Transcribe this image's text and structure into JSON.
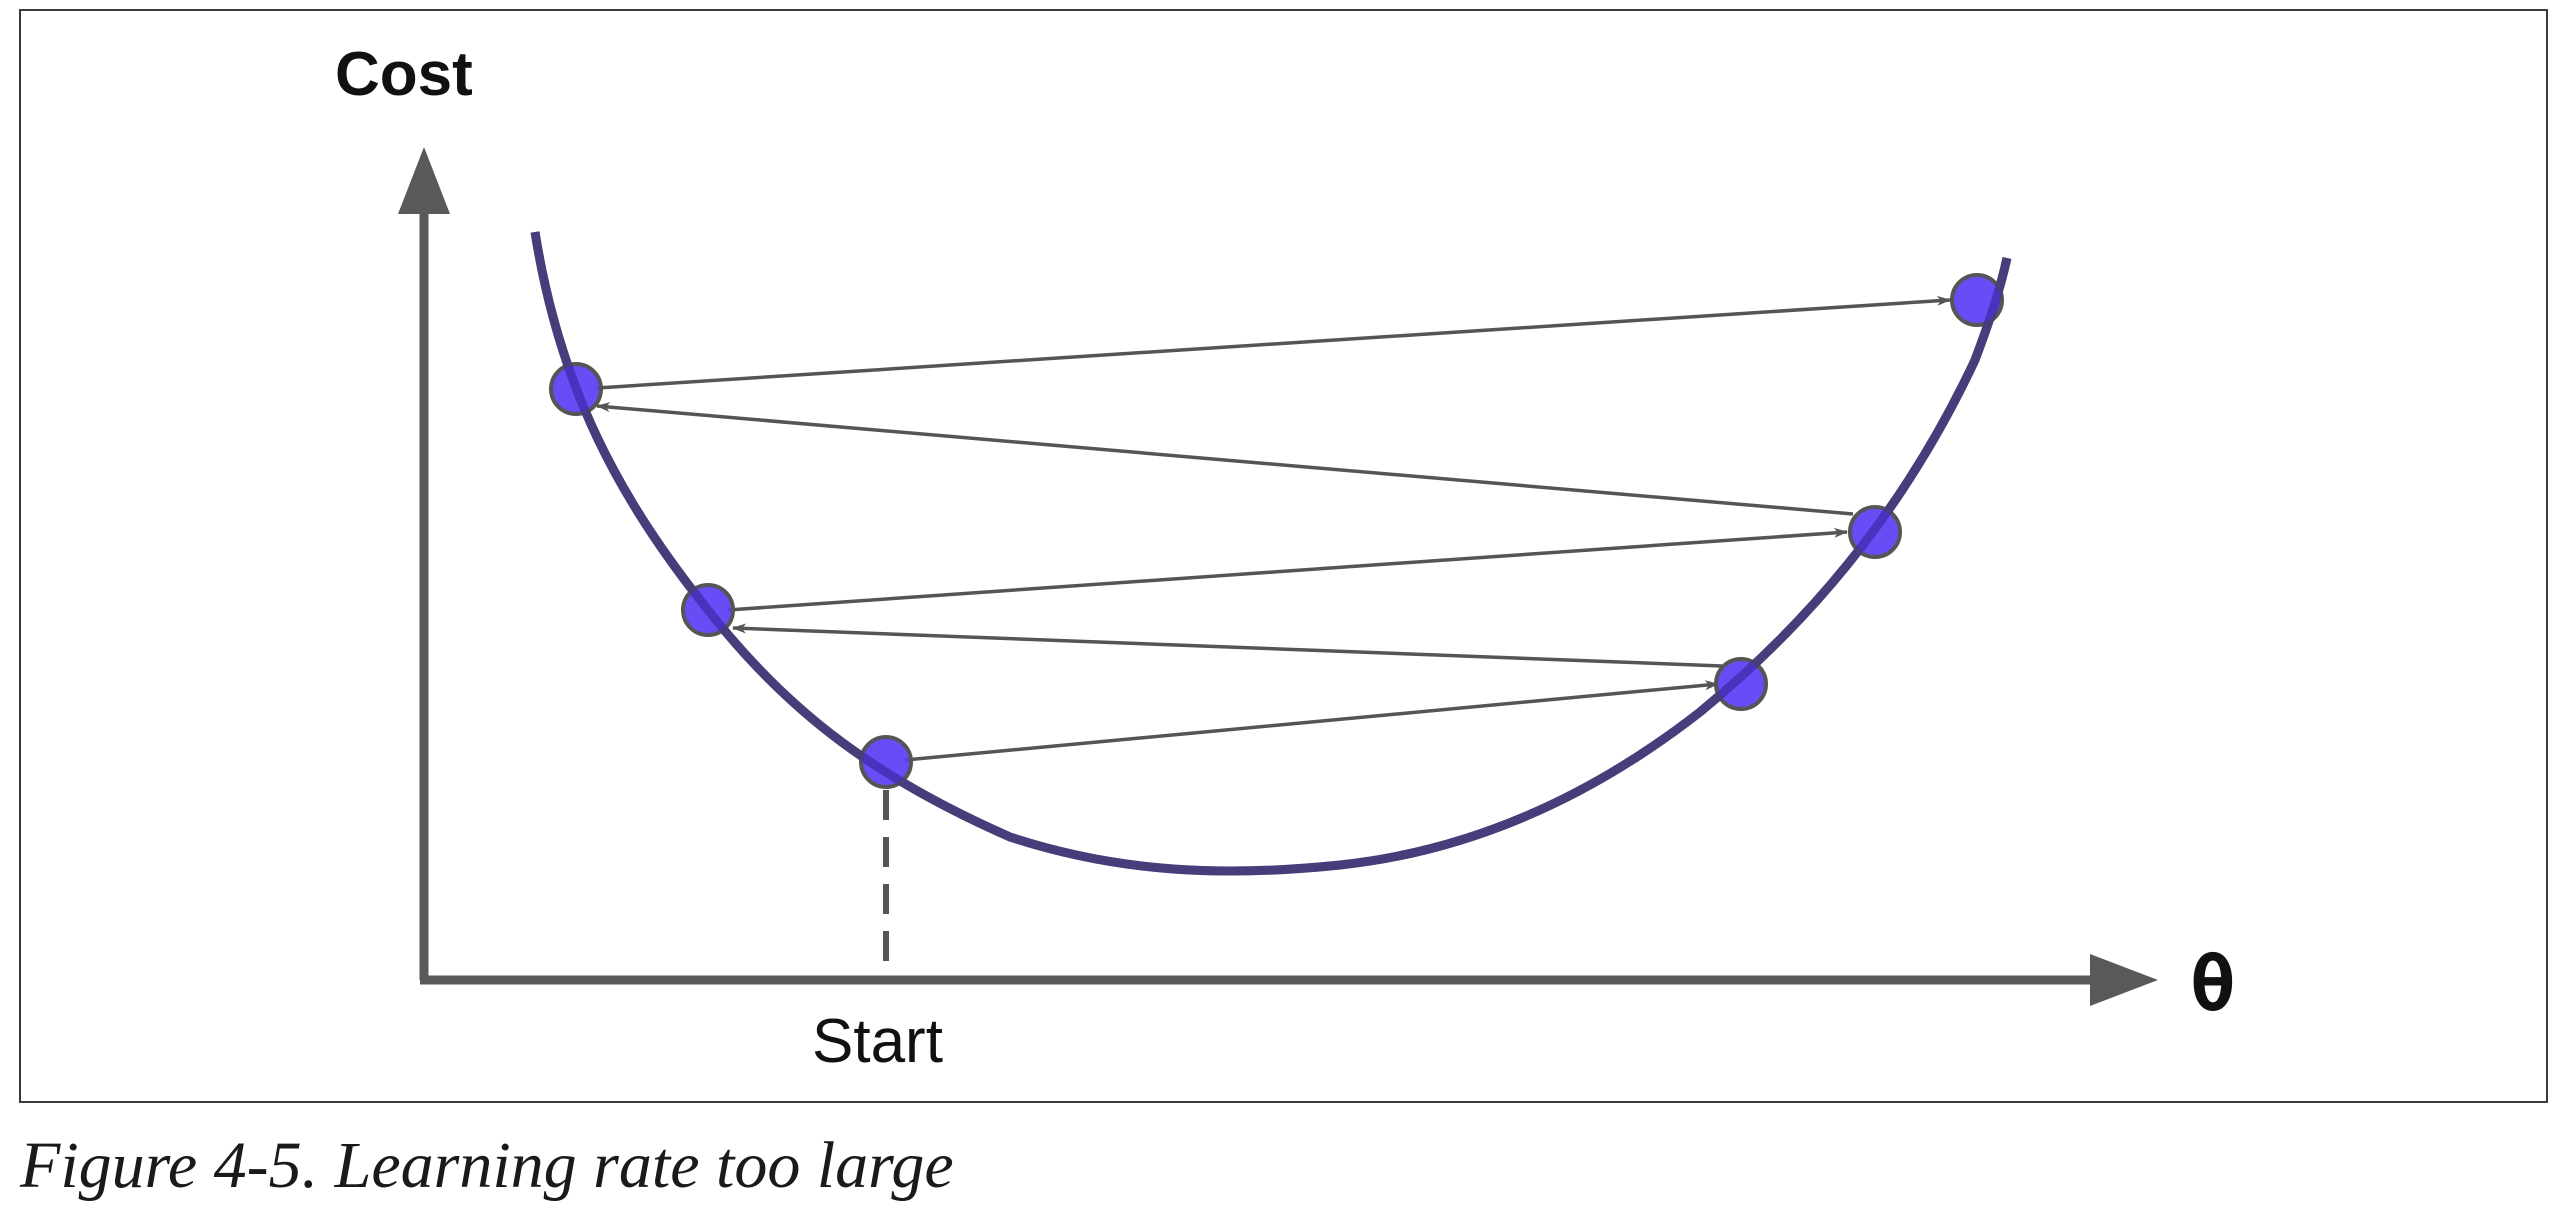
{
  "diagram": {
    "y_axis_label": "Cost",
    "x_axis_label": "θ",
    "start_label": "Start",
    "colors": {
      "axis": "#595959",
      "curve": "#555555",
      "arrow": "#555555",
      "point_fill": "#5b3df5",
      "point_stroke": "#555555"
    },
    "steps": 6
  },
  "caption": "Figure 4-5. Learning rate too large"
}
